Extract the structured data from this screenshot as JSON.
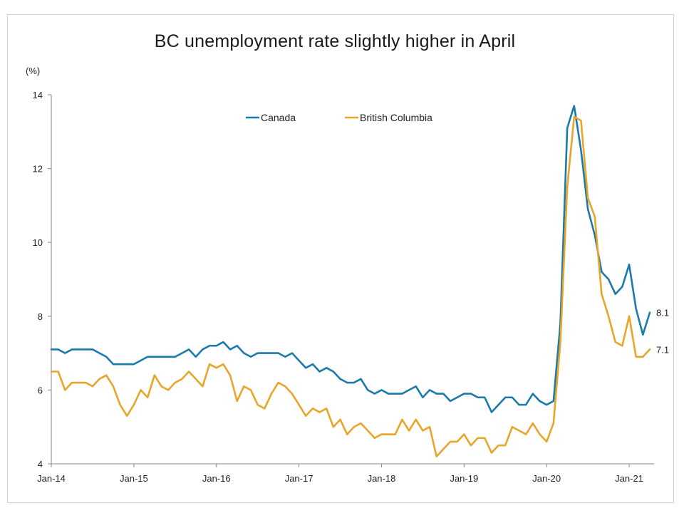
{
  "chart_data": {
    "type": "line",
    "title": "BC unemployment rate slightly higher in April",
    "unit_label": "(%)",
    "ylim": [
      4,
      14
    ],
    "yticks": [
      4,
      6,
      8,
      10,
      12,
      14
    ],
    "x_tick_labels": [
      "Jan-14",
      "Jan-15",
      "Jan-16",
      "Jan-17",
      "Jan-18",
      "Jan-19",
      "Jan-20",
      "Jan-21"
    ],
    "x_start": "Jan-14",
    "x_end": "Apr-21",
    "grid": false,
    "legend_position": "top-center",
    "series": [
      {
        "name": "Canada",
        "color": "#1a7aab",
        "end_label": "8.1",
        "values": [
          7.1,
          7.1,
          7.0,
          7.1,
          7.1,
          7.1,
          7.1,
          7.0,
          6.9,
          6.7,
          6.7,
          6.7,
          6.7,
          6.8,
          6.9,
          6.9,
          6.9,
          6.9,
          6.9,
          7.0,
          7.1,
          6.9,
          7.1,
          7.2,
          7.2,
          7.3,
          7.1,
          7.2,
          7.0,
          6.9,
          7.0,
          7.0,
          7.0,
          7.0,
          6.9,
          7.0,
          6.8,
          6.6,
          6.7,
          6.5,
          6.6,
          6.5,
          6.3,
          6.2,
          6.2,
          6.3,
          6.0,
          5.9,
          6.0,
          5.9,
          5.9,
          5.9,
          6.0,
          6.1,
          5.8,
          6.0,
          5.9,
          5.9,
          5.7,
          5.8,
          5.9,
          5.9,
          5.8,
          5.8,
          5.4,
          5.6,
          5.8,
          5.8,
          5.6,
          5.6,
          5.9,
          5.7,
          5.6,
          5.7,
          7.8,
          13.1,
          13.7,
          12.5,
          10.9,
          10.2,
          9.2,
          9.0,
          8.6,
          8.8,
          9.4,
          8.2,
          7.5,
          8.1
        ]
      },
      {
        "name": "British Columbia",
        "color": "#e8a52a",
        "end_label": "7.1",
        "values": [
          6.5,
          6.5,
          6.0,
          6.2,
          6.2,
          6.2,
          6.1,
          6.3,
          6.4,
          6.1,
          5.6,
          5.3,
          5.6,
          6.0,
          5.8,
          6.4,
          6.1,
          6.0,
          6.2,
          6.3,
          6.5,
          6.3,
          6.1,
          6.7,
          6.6,
          6.7,
          6.4,
          5.7,
          6.1,
          6.0,
          5.6,
          5.5,
          5.9,
          6.2,
          6.1,
          5.9,
          5.6,
          5.3,
          5.5,
          5.4,
          5.5,
          5.0,
          5.2,
          4.8,
          5.0,
          5.1,
          4.9,
          4.7,
          4.8,
          4.8,
          4.8,
          5.2,
          4.9,
          5.2,
          4.9,
          5.0,
          4.2,
          4.4,
          4.6,
          4.6,
          4.8,
          4.5,
          4.7,
          4.7,
          4.3,
          4.5,
          4.5,
          5.0,
          4.9,
          4.8,
          5.1,
          4.8,
          4.6,
          5.1,
          7.3,
          11.5,
          13.4,
          13.3,
          11.2,
          10.7,
          8.6,
          8.0,
          7.3,
          7.2,
          8.0,
          6.9,
          6.9,
          7.1
        ]
      }
    ]
  }
}
